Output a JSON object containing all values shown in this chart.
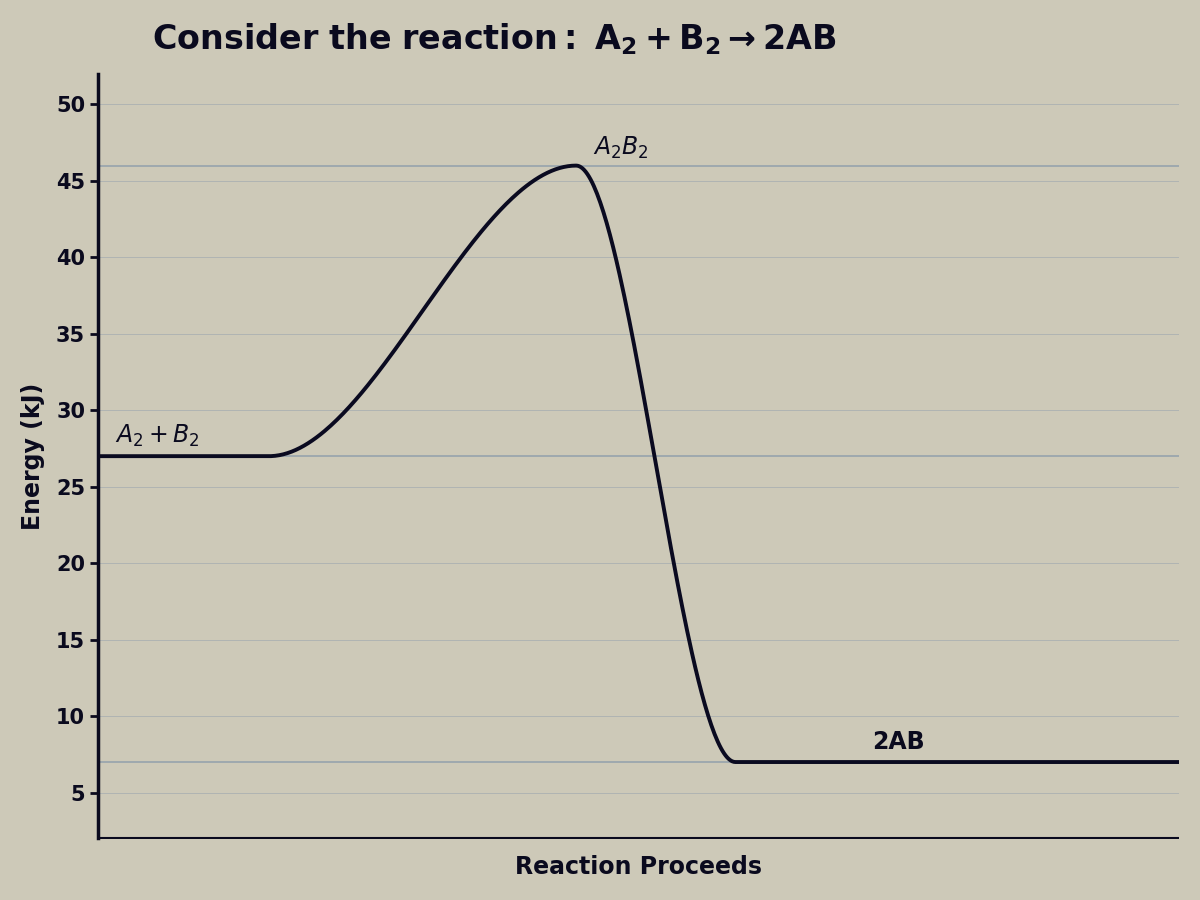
{
  "title_plain": "Consider the reaction: A",
  "title_sub1": "2",
  "title_mid": " + B",
  "title_sub2": "2",
  "title_end": " → 2AB",
  "xlabel": "Reaction Proceeds",
  "ylabel": "Energy (kJ)",
  "bg_color": "#cdc9b8",
  "plot_bg_color": "#cdc9b8",
  "line_color": "#0a0a20",
  "text_color": "#0a0a1e",
  "grid_color": "#8899aa",
  "reactant_energy": 27,
  "transition_energy": 46,
  "product_energy": 7,
  "ylim": [
    2,
    52
  ],
  "yticks": [
    5,
    10,
    15,
    20,
    25,
    30,
    35,
    40,
    45,
    50
  ],
  "title_fontsize": 24,
  "label_fontsize": 17,
  "axis_fontsize": 15,
  "annot_fontsize": 17
}
